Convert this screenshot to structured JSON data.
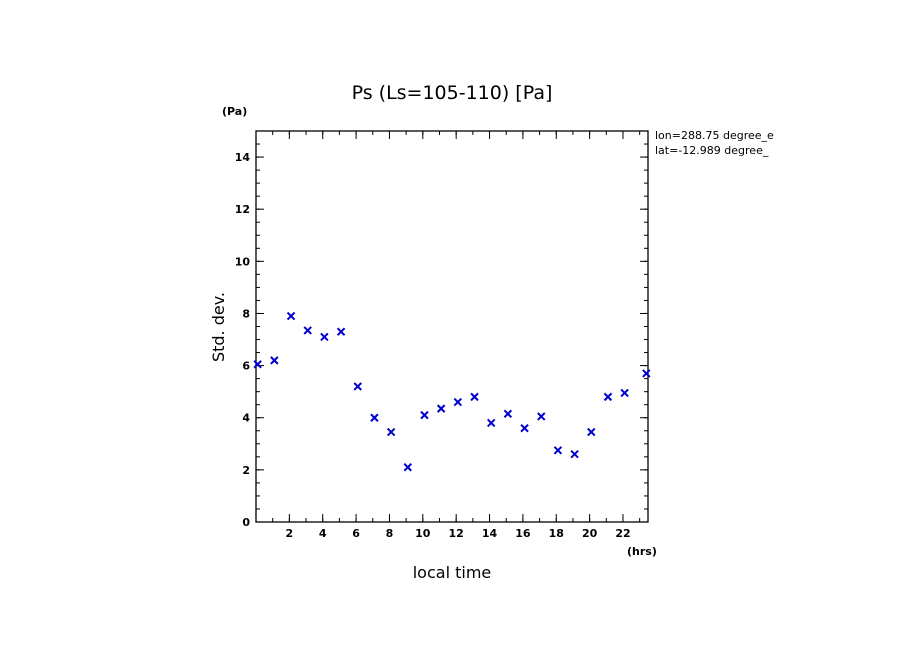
{
  "chart_data": {
    "type": "scatter",
    "title": "Ps (Ls=105-110) [Pa]",
    "xlabel": "local time",
    "ylabel": "Std. dev.",
    "x_unit": "(hrs)",
    "y_unit": "(Pa)",
    "annotations": [
      "lon=288.75 degree_e",
      "lat=-12.989 degree_"
    ],
    "xlim": [
      0,
      23.5
    ],
    "ylim": [
      0,
      15
    ],
    "x_ticks": [
      2,
      4,
      6,
      8,
      10,
      12,
      14,
      16,
      18,
      20,
      22
    ],
    "y_ticks": [
      0,
      2,
      4,
      6,
      8,
      10,
      12,
      14
    ],
    "marker": "x",
    "color": "#0000cc",
    "grid": false,
    "series": [
      {
        "x": [
          0.1,
          1.1,
          2.1,
          3.1,
          4.1,
          5.1,
          6.1,
          7.1,
          8.1,
          9.1,
          10.1,
          11.1,
          12.1,
          13.1,
          14.1,
          15.1,
          16.1,
          17.1,
          18.1,
          19.1,
          20.1,
          21.1,
          22.1,
          23.4
        ],
        "y": [
          6.05,
          6.2,
          7.9,
          7.35,
          7.1,
          7.3,
          5.2,
          4.0,
          3.45,
          2.1,
          4.1,
          4.35,
          4.6,
          4.8,
          3.8,
          4.15,
          3.6,
          4.05,
          2.75,
          2.6,
          3.45,
          4.8,
          4.95,
          5.7
        ]
      }
    ]
  }
}
